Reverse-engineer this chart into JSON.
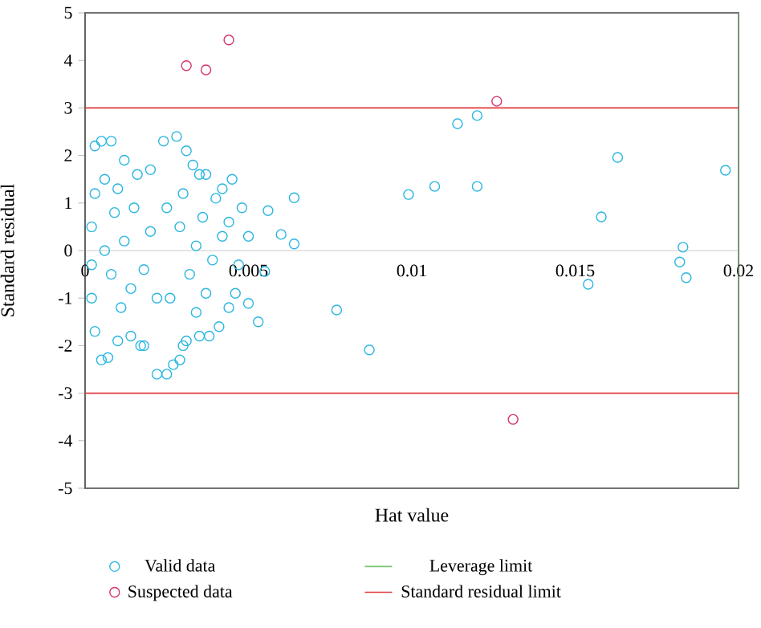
{
  "chart_data": {
    "type": "scatter",
    "xlabel": "Hat value",
    "ylabel": "Standard residual",
    "xlim": [
      0,
      0.02
    ],
    "ylim": [
      -5,
      5
    ],
    "xticks": [
      0,
      0.005,
      0.01,
      0.015,
      0.02
    ],
    "yticks": [
      -5,
      -4,
      -3,
      -2,
      -1,
      0,
      1,
      2,
      3,
      4,
      5
    ],
    "marker": "circle",
    "legend": "bottom",
    "grid": false,
    "series": [
      {
        "name": "Valid data",
        "color": "#29b6e0",
        "x": [
          0.0003,
          0.0005,
          0.0008,
          0.0012,
          0.0016,
          0.002,
          0.0024,
          0.0003,
          0.0002,
          0.0002,
          0.0002,
          0.0003,
          0.0005,
          0.0007,
          0.001,
          0.0014,
          0.0018,
          0.0022,
          0.0025,
          0.0017,
          0.0006,
          0.0009,
          0.0012,
          0.0008,
          0.0011,
          0.0015,
          0.0018,
          0.0006,
          0.0014,
          0.001,
          0.002,
          0.0022,
          0.0028,
          0.0031,
          0.0033,
          0.0035,
          0.0037,
          0.004,
          0.0042,
          0.0045,
          0.0048,
          0.005,
          0.0047,
          0.0046,
          0.0044,
          0.0041,
          0.0038,
          0.0035,
          0.0031,
          0.0029,
          0.0027,
          0.003,
          0.0034,
          0.0029,
          0.0032,
          0.0036,
          0.0039,
          0.0042,
          0.003,
          0.0034,
          0.0026,
          0.0037,
          0.0044,
          0.0025,
          0.0099,
          0.0107,
          0.0114,
          0.012,
          0.012,
          0.0163,
          0.0158,
          0.0196,
          0.0183,
          0.0182,
          0.0184,
          0.0154,
          0.0077,
          0.0087,
          0.0064,
          0.0064,
          0.006,
          0.0056,
          0.005,
          0.0053,
          0.0055
        ],
        "values": [
          2.2,
          2.3,
          2.3,
          1.9,
          1.6,
          1.7,
          2.3,
          1.2,
          0.5,
          -0.3,
          -1.0,
          -1.7,
          -2.3,
          -2.25,
          -1.9,
          -1.8,
          -2.0,
          -2.6,
          -2.6,
          -2.0,
          1.5,
          0.8,
          0.2,
          -0.5,
          -1.2,
          0.9,
          -0.4,
          0.0,
          -0.8,
          1.3,
          0.4,
          -1.0,
          2.4,
          2.1,
          1.8,
          1.6,
          1.6,
          1.1,
          1.3,
          1.5,
          0.9,
          0.3,
          -0.3,
          -0.9,
          -1.2,
          -1.6,
          -1.8,
          -1.8,
          -1.9,
          -2.3,
          -2.4,
          -2.0,
          -1.3,
          0.5,
          -0.5,
          0.7,
          -0.2,
          0.3,
          1.2,
          0.1,
          -1.0,
          -0.9,
          0.6,
          0.9,
          1.18,
          1.35,
          2.67,
          2.84,
          1.35,
          1.96,
          0.71,
          1.69,
          0.07,
          -0.24,
          -0.57,
          -0.71,
          -1.25,
          -2.09,
          1.11,
          0.14,
          0.34,
          0.84,
          -1.11,
          -1.5,
          -0.44
        ]
      },
      {
        "name": "Suspected data",
        "color": "#d6336c",
        "x": [
          0.0031,
          0.0037,
          0.0044,
          0.0126,
          0.0131
        ],
        "values": [
          3.89,
          3.8,
          4.43,
          3.14,
          -3.55
        ]
      }
    ],
    "ref_lines": [
      {
        "axis": "x",
        "value": 0.02,
        "label": "Leverage limit",
        "color": "#7cc576"
      },
      {
        "axis": "y",
        "value": 3,
        "label": "Standard residual limit",
        "color": "#e0393e"
      },
      {
        "axis": "y",
        "value": -3,
        "color": "#e0393e"
      }
    ]
  }
}
